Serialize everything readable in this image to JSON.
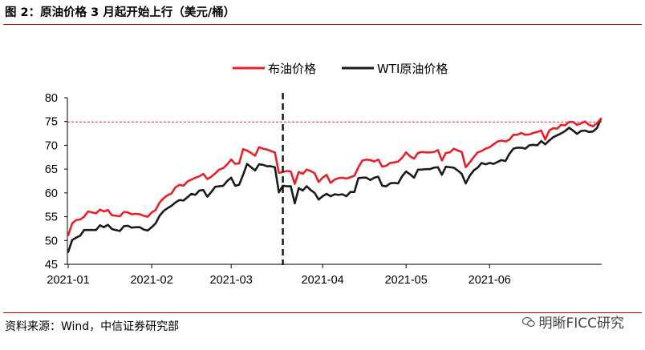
{
  "figure": {
    "title": "图 2：原油价格 3 月起开始上行（美元/桶）",
    "source": "资料来源：Wind，中信证券研究部",
    "watermark": "明晰FICC研究"
  },
  "chart_data": {
    "type": "line",
    "ylim": [
      45,
      80
    ],
    "yticks": [
      45,
      50,
      55,
      60,
      65,
      70,
      75,
      80
    ],
    "x_tick_labels": [
      "2021-01",
      "2021-02",
      "2021-03",
      "2021-04",
      "2021-05",
      "2021-06"
    ],
    "x_tick_index": [
      0,
      21,
      41,
      64,
      85,
      106
    ],
    "legend_position": "top-center",
    "reference_line": {
      "value": 74.9,
      "color": "#e8202a",
      "style": "dashed"
    },
    "event_line": {
      "index": 54,
      "label": "2021-03-23",
      "style": "dashed"
    },
    "colors": {
      "brent": "#e8202a",
      "wti": "#1a1a1a"
    },
    "series": [
      {
        "name": "布油价格",
        "values": [
          51.1,
          53.6,
          54.3,
          54.4,
          55.0,
          56.1,
          55.9,
          55.7,
          56.5,
          56.1,
          56.4,
          55.3,
          55.2,
          55.1,
          56.0,
          55.9,
          55.5,
          55.6,
          55.5,
          55.2,
          55.0,
          55.9,
          56.4,
          58.0,
          58.9,
          59.5,
          59.9,
          61.2,
          61.7,
          61.5,
          62.4,
          62.8,
          63.2,
          63.5,
          64.0,
          62.9,
          63.4,
          64.1,
          64.9,
          65.2,
          66.0,
          67.0,
          66.1,
          66.2,
          69.2,
          68.9,
          68.4,
          67.8,
          69.6,
          69.3,
          69.1,
          68.8,
          68.5,
          64.2,
          64.4,
          64.6,
          64.5,
          61.9,
          64.4,
          64.0,
          64.9,
          64.6,
          64.1,
          62.3,
          63.2,
          63.8,
          62.1,
          62.8,
          63.1,
          63.2,
          63.0,
          63.3,
          63.6,
          65.4,
          66.8,
          67.0,
          66.9,
          66.6,
          67.0,
          65.5,
          65.7,
          66.3,
          66.4,
          66.6,
          67.4,
          68.5,
          67.7,
          67.2,
          68.4,
          68.6,
          68.5,
          68.5,
          68.6,
          69.0,
          66.8,
          68.4,
          68.5,
          69.3,
          68.9,
          68.6,
          65.4,
          66.4,
          67.5,
          68.5,
          68.8,
          69.3,
          69.6,
          70.2,
          70.8,
          71.0,
          70.8,
          71.2,
          72.2,
          72.2,
          72.6,
          72.2,
          72.3,
          72.6,
          72.8,
          73.1,
          71.2,
          73.1,
          73.6,
          73.5,
          74.3,
          74.2,
          74.9,
          74.9,
          74.3,
          74.6,
          75.0,
          74.3,
          74.0,
          74.6,
          75.6
        ]
      },
      {
        "name": "WTI原油价格",
        "values": [
          47.6,
          50.1,
          50.6,
          51.0,
          52.2,
          52.2,
          52.2,
          52.2,
          53.2,
          52.8,
          53.3,
          52.4,
          52.2,
          52.0,
          53.0,
          53.1,
          52.7,
          52.8,
          52.8,
          52.3,
          52.1,
          52.8,
          53.6,
          55.2,
          56.2,
          56.8,
          57.3,
          58.0,
          58.5,
          58.4,
          59.1,
          59.8,
          59.6,
          60.5,
          60.6,
          59.2,
          60.2,
          61.3,
          61.4,
          61.5,
          62.5,
          63.2,
          61.5,
          61.7,
          63.8,
          66.1,
          65.4,
          64.7,
          66.0,
          65.9,
          65.6,
          65.6,
          65.4,
          60.1,
          61.5,
          61.4,
          61.4,
          57.8,
          61.0,
          60.5,
          61.4,
          60.6,
          60.0,
          58.6,
          59.3,
          59.8,
          59.3,
          59.7,
          59.6,
          59.7,
          59.3,
          60.2,
          60.2,
          63.1,
          63.2,
          63.2,
          62.7,
          63.2,
          63.4,
          61.5,
          61.4,
          62.0,
          62.1,
          62.0,
          63.5,
          64.5,
          63.9,
          63.2,
          64.9,
          64.9,
          65.0,
          65.0,
          65.3,
          65.4,
          63.8,
          65.5,
          65.4,
          65.3,
          64.7,
          64.0,
          62.0,
          63.6,
          64.7,
          65.3,
          66.3,
          66.0,
          66.3,
          66.1,
          66.5,
          66.9,
          66.7,
          68.2,
          69.3,
          69.5,
          69.5,
          69.3,
          70.0,
          70.1,
          70.0,
          70.9,
          70.2,
          71.0,
          71.7,
          72.1,
          72.5,
          73.0,
          73.7,
          73.1,
          72.4,
          73.0,
          73.1,
          72.8,
          72.9,
          73.6,
          75.5
        ]
      }
    ]
  }
}
